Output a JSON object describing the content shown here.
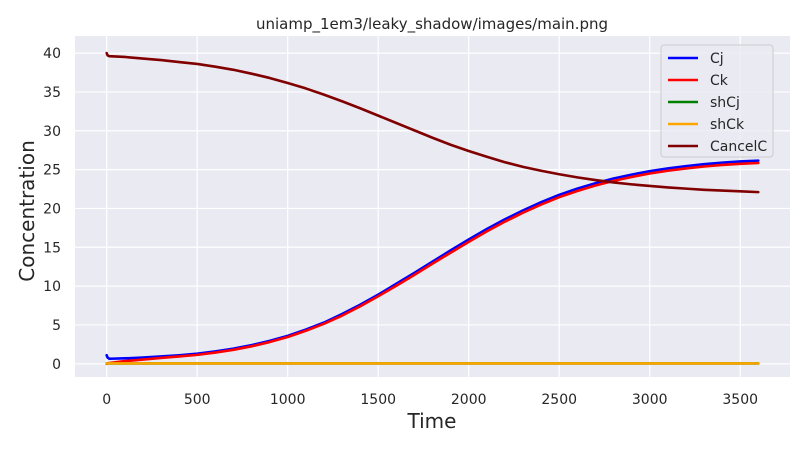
{
  "chart_data": {
    "type": "line",
    "title": "uniamp_1em3/leaky_shadow/images/main.png",
    "xlabel": "Time",
    "ylabel": "Concentration",
    "xlim": [
      -175,
      3775
    ],
    "ylim": [
      -1.7,
      42.2
    ],
    "x_ticks": [
      0,
      500,
      1000,
      1500,
      2000,
      2500,
      3000,
      3500
    ],
    "y_ticks": [
      0,
      5,
      10,
      15,
      20,
      25,
      30,
      35,
      40
    ],
    "grid": true,
    "legend_position": "top-right",
    "series": [
      {
        "name": "Cj",
        "color": "#0000ff",
        "x": [
          0,
          5,
          15,
          100,
          200,
          300,
          400,
          500,
          600,
          700,
          800,
          900,
          1000,
          1100,
          1200,
          1300,
          1400,
          1500,
          1600,
          1700,
          1800,
          1900,
          2000,
          2100,
          2200,
          2300,
          2400,
          2500,
          2600,
          2700,
          2800,
          2900,
          3000,
          3100,
          3200,
          3300,
          3400,
          3500,
          3600
        ],
        "y": [
          1.1,
          0.8,
          0.65,
          0.7,
          0.8,
          0.95,
          1.1,
          1.3,
          1.6,
          1.95,
          2.4,
          2.95,
          3.6,
          4.4,
          5.3,
          6.4,
          7.6,
          8.9,
          10.3,
          11.7,
          13.15,
          14.6,
          16.0,
          17.35,
          18.6,
          19.75,
          20.8,
          21.75,
          22.55,
          23.25,
          23.85,
          24.35,
          24.8,
          25.15,
          25.45,
          25.7,
          25.9,
          26.05,
          26.15
        ]
      },
      {
        "name": "Ck",
        "color": "#ff0000",
        "x": [
          0,
          5,
          15,
          100,
          200,
          300,
          400,
          500,
          600,
          700,
          800,
          900,
          1000,
          1100,
          1200,
          1300,
          1400,
          1500,
          1600,
          1700,
          1800,
          1900,
          2000,
          2100,
          2200,
          2300,
          2400,
          2500,
          2600,
          2700,
          2800,
          2900,
          3000,
          3100,
          3200,
          3300,
          3400,
          3500,
          3600
        ],
        "y": [
          0.0,
          0.05,
          0.1,
          0.35,
          0.55,
          0.75,
          0.95,
          1.15,
          1.45,
          1.8,
          2.25,
          2.8,
          3.45,
          4.25,
          5.15,
          6.2,
          7.4,
          8.7,
          10.05,
          11.45,
          12.9,
          14.3,
          15.7,
          17.05,
          18.3,
          19.45,
          20.5,
          21.45,
          22.25,
          22.95,
          23.55,
          24.05,
          24.5,
          24.85,
          25.15,
          25.4,
          25.6,
          25.75,
          25.85
        ]
      },
      {
        "name": "shCj",
        "color": "#008000",
        "x": [
          0,
          500,
          1000,
          1500,
          2000,
          2500,
          3000,
          3500,
          3600
        ],
        "y": [
          0.05,
          0.05,
          0.05,
          0.05,
          0.05,
          0.05,
          0.05,
          0.05,
          0.05
        ]
      },
      {
        "name": "shCk",
        "color": "#ffa500",
        "x": [
          0,
          500,
          1000,
          1500,
          2000,
          2500,
          3000,
          3500,
          3600
        ],
        "y": [
          0.05,
          0.05,
          0.05,
          0.05,
          0.05,
          0.05,
          0.05,
          0.05,
          0.05
        ]
      },
      {
        "name": "CancelC",
        "color": "#800000",
        "x": [
          0,
          5,
          15,
          100,
          200,
          300,
          400,
          500,
          600,
          700,
          800,
          900,
          1000,
          1100,
          1200,
          1300,
          1400,
          1500,
          1600,
          1700,
          1800,
          1900,
          2000,
          2100,
          2200,
          2300,
          2400,
          2500,
          2600,
          2700,
          2800,
          2900,
          3000,
          3100,
          3200,
          3300,
          3400,
          3500,
          3600
        ],
        "y": [
          40.0,
          39.7,
          39.6,
          39.5,
          39.3,
          39.1,
          38.85,
          38.6,
          38.25,
          37.85,
          37.35,
          36.8,
          36.15,
          35.45,
          34.65,
          33.8,
          32.9,
          31.95,
          31.0,
          30.05,
          29.1,
          28.2,
          27.4,
          26.65,
          25.95,
          25.35,
          24.85,
          24.4,
          24.0,
          23.65,
          23.35,
          23.1,
          22.9,
          22.7,
          22.55,
          22.4,
          22.3,
          22.2,
          22.1
        ]
      }
    ]
  }
}
